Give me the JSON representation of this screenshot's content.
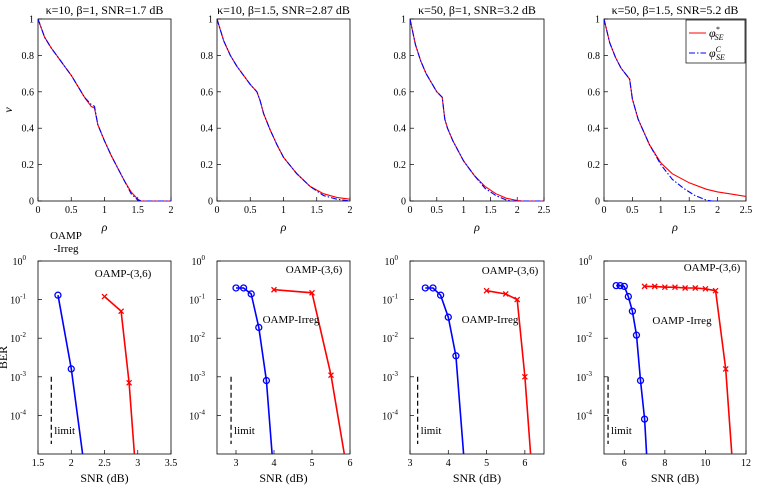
{
  "chart_data": [
    {
      "type": "line",
      "title": "κ=10, β=1, SNR=1.7 dB",
      "xlabel": "ρ",
      "ylabel": "v",
      "xlim": [
        0,
        2
      ],
      "ylim": [
        0,
        1
      ],
      "xticks": [
        "0",
        "0.5",
        "1",
        "1.5",
        "2"
      ],
      "yticks": [
        "0",
        "0.2",
        "0.4",
        "0.6",
        "0.8",
        "1"
      ],
      "series": [
        {
          "name": "φ*SE",
          "color": "#ff0000",
          "style": "solid",
          "x": [
            0,
            0.1,
            0.2,
            0.3,
            0.4,
            0.5,
            0.6,
            0.7,
            0.8,
            0.85,
            0.9,
            1.0,
            1.1,
            1.2,
            1.3,
            1.4,
            1.5,
            1.55,
            1.6,
            2.0
          ],
          "y": [
            1,
            0.9,
            0.84,
            0.79,
            0.74,
            0.69,
            0.63,
            0.57,
            0.52,
            0.51,
            0.42,
            0.33,
            0.25,
            0.18,
            0.11,
            0.05,
            0.01,
            0,
            0,
            0
          ]
        },
        {
          "name": "φCSE",
          "color": "#0000ff",
          "style": "dashdot",
          "x": [
            0,
            0.1,
            0.2,
            0.3,
            0.4,
            0.5,
            0.6,
            0.7,
            0.8,
            0.85,
            0.9,
            1.0,
            1.1,
            1.2,
            1.3,
            1.4,
            1.5,
            1.55,
            1.6,
            2.0
          ],
          "y": [
            1,
            0.9,
            0.84,
            0.79,
            0.74,
            0.69,
            0.63,
            0.57,
            0.53,
            0.52,
            0.42,
            0.33,
            0.25,
            0.18,
            0.11,
            0.04,
            0.005,
            0,
            0,
            0
          ]
        }
      ]
    },
    {
      "type": "line",
      "title": "κ=10, β=1.5, SNR=2.87 dB",
      "xlabel": "ρ",
      "ylabel": "",
      "xlim": [
        0,
        2
      ],
      "ylim": [
        0,
        1
      ],
      "xticks": [
        "0",
        "0.5",
        "1",
        "1.5",
        "2"
      ],
      "yticks": [
        "0",
        "0.2",
        "0.4",
        "0.6",
        "0.8",
        "1"
      ],
      "series": [
        {
          "name": "φ*SE",
          "color": "#ff0000",
          "style": "solid",
          "x": [
            0,
            0.1,
            0.2,
            0.3,
            0.4,
            0.5,
            0.6,
            0.65,
            0.7,
            0.8,
            0.9,
            1.0,
            1.2,
            1.4,
            1.6,
            1.8,
            2.0
          ],
          "y": [
            1,
            0.88,
            0.8,
            0.74,
            0.69,
            0.64,
            0.6,
            0.55,
            0.48,
            0.39,
            0.31,
            0.24,
            0.15,
            0.08,
            0.04,
            0.02,
            0.01
          ]
        },
        {
          "name": "φCSE",
          "color": "#0000ff",
          "style": "dashdot",
          "x": [
            0,
            0.1,
            0.2,
            0.3,
            0.4,
            0.5,
            0.6,
            0.65,
            0.7,
            0.8,
            0.9,
            1.0,
            1.2,
            1.4,
            1.6,
            1.8,
            2.0
          ],
          "y": [
            1,
            0.88,
            0.8,
            0.74,
            0.69,
            0.64,
            0.6,
            0.55,
            0.48,
            0.39,
            0.31,
            0.24,
            0.15,
            0.08,
            0.03,
            0.01,
            0
          ]
        }
      ]
    },
    {
      "type": "line",
      "title": "κ=50, β=1, SNR=3.2 dB",
      "xlabel": "ρ",
      "ylabel": "",
      "xlim": [
        0,
        2.5
      ],
      "ylim": [
        0,
        1
      ],
      "xticks": [
        "0",
        "0.5",
        "1",
        "1.5",
        "2",
        "2.5"
      ],
      "yticks": [
        "0",
        "0.2",
        "0.4",
        "0.6",
        "0.8",
        "1"
      ],
      "series": [
        {
          "name": "φ*SE",
          "color": "#ff0000",
          "style": "solid",
          "x": [
            0,
            0.1,
            0.2,
            0.3,
            0.4,
            0.5,
            0.6,
            0.65,
            0.7,
            0.8,
            1.0,
            1.2,
            1.4,
            1.6,
            1.8,
            2.0,
            2.1,
            2.5
          ],
          "y": [
            1,
            0.86,
            0.77,
            0.7,
            0.65,
            0.6,
            0.57,
            0.45,
            0.4,
            0.33,
            0.22,
            0.14,
            0.08,
            0.04,
            0.015,
            0.003,
            0,
            0
          ]
        },
        {
          "name": "φCSE",
          "color": "#0000ff",
          "style": "dashdot",
          "x": [
            0,
            0.1,
            0.2,
            0.3,
            0.4,
            0.5,
            0.6,
            0.65,
            0.7,
            0.8,
            1.0,
            1.2,
            1.4,
            1.6,
            1.8,
            1.9,
            2.0,
            2.5
          ],
          "y": [
            1,
            0.86,
            0.77,
            0.7,
            0.65,
            0.6,
            0.57,
            0.45,
            0.4,
            0.33,
            0.22,
            0.14,
            0.07,
            0.03,
            0.005,
            0,
            0,
            0
          ]
        }
      ]
    },
    {
      "type": "line",
      "title": "κ=50, β=1.5, SNR=5.2 dB",
      "xlabel": "ρ",
      "ylabel": "",
      "xlim": [
        0,
        2.5
      ],
      "ylim": [
        0,
        1
      ],
      "xticks": [
        "0",
        "0.5",
        "1",
        "1.5",
        "2",
        "2.5"
      ],
      "yticks": [
        "0",
        "0.2",
        "0.4",
        "0.6",
        "0.8",
        "1"
      ],
      "legend": {
        "position": "top-right",
        "entries": [
          "φ*SE",
          "φCSE"
        ]
      },
      "series": [
        {
          "name": "φ*SE",
          "color": "#ff0000",
          "style": "solid",
          "x": [
            0,
            0.1,
            0.2,
            0.3,
            0.4,
            0.45,
            0.5,
            0.6,
            0.8,
            1.0,
            1.2,
            1.5,
            1.8,
            2.0,
            2.2,
            2.5
          ],
          "y": [
            1,
            0.87,
            0.79,
            0.73,
            0.69,
            0.67,
            0.56,
            0.45,
            0.31,
            0.21,
            0.15,
            0.1,
            0.065,
            0.05,
            0.04,
            0.025
          ]
        },
        {
          "name": "φCSE",
          "color": "#0000ff",
          "style": "dashdot",
          "x": [
            0,
            0.1,
            0.2,
            0.3,
            0.4,
            0.45,
            0.5,
            0.6,
            0.8,
            1.0,
            1.2,
            1.4,
            1.6,
            1.8,
            1.9,
            2.0
          ],
          "y": [
            1,
            0.87,
            0.79,
            0.73,
            0.69,
            0.67,
            0.56,
            0.45,
            0.31,
            0.2,
            0.12,
            0.07,
            0.03,
            0.005,
            0,
            0
          ]
        }
      ]
    },
    {
      "type": "line",
      "yscale": "log",
      "xlabel": "SNR (dB)",
      "ylabel": "BER",
      "xlim": [
        1.5,
        3.5
      ],
      "ylim": [
        1e-05,
        1
      ],
      "xticks": [
        "1.5",
        "2",
        "2.5",
        "3",
        "3.5"
      ],
      "limit_snr": 1.7,
      "limit_label": "limit",
      "series": [
        {
          "name": "OAMP-Irreg",
          "label": "OAMP\n-Irreg",
          "color": "#0000ff",
          "marker": "circle",
          "x": [
            1.8,
            2.0,
            2.17
          ],
          "y": [
            0.13,
            0.0016,
            1e-05
          ],
          "markers": 2
        },
        {
          "name": "OAMP-(3,6)",
          "label": "OAMP-(3,6)",
          "color": "#ff0000",
          "marker": "x",
          "x": [
            2.5,
            2.75,
            2.87,
            2.95
          ],
          "y": [
            0.12,
            0.05,
            0.0007,
            1e-05
          ],
          "markers": 3
        }
      ]
    },
    {
      "type": "line",
      "yscale": "log",
      "xlabel": "SNR (dB)",
      "ylabel": "",
      "xlim": [
        2.5,
        6
      ],
      "ylim": [
        1e-05,
        1
      ],
      "xticks": [
        "3",
        "4",
        "5",
        "6"
      ],
      "limit_snr": 2.87,
      "limit_label": "limit",
      "series": [
        {
          "name": "OAMP-Irreg",
          "label": "OAMP-Irreg",
          "color": "#0000ff",
          "marker": "circle",
          "x": [
            3.0,
            3.2,
            3.4,
            3.6,
            3.8,
            3.95
          ],
          "y": [
            0.2,
            0.2,
            0.14,
            0.019,
            0.0008,
            1e-05
          ],
          "markers": 5
        },
        {
          "name": "OAMP-(3,6)",
          "label": "OAMP-(3,6)",
          "color": "#ff0000",
          "marker": "x",
          "x": [
            4.0,
            5.0,
            5.5,
            5.85
          ],
          "y": [
            0.18,
            0.15,
            0.0011,
            1e-05
          ],
          "markers": 3
        }
      ]
    },
    {
      "type": "line",
      "yscale": "log",
      "xlabel": "SNR (dB)",
      "ylabel": "",
      "xlim": [
        3,
        6.5
      ],
      "ylim": [
        1e-05,
        1
      ],
      "xticks": [
        "3",
        "4",
        "5",
        "6"
      ],
      "limit_snr": 3.2,
      "limit_label": "limit",
      "series": [
        {
          "name": "OAMP-Irreg",
          "label": "OAMP-Irreg",
          "color": "#0000ff",
          "marker": "circle",
          "x": [
            3.4,
            3.6,
            3.8,
            4.0,
            4.2,
            4.4
          ],
          "y": [
            0.2,
            0.2,
            0.13,
            0.035,
            0.0035,
            1e-05
          ],
          "markers": 5
        },
        {
          "name": "OAMP-(3,6)",
          "label": "OAMP-(3,6)",
          "color": "#ff0000",
          "marker": "x",
          "x": [
            5.0,
            5.5,
            5.8,
            6.0,
            6.15
          ],
          "y": [
            0.17,
            0.14,
            0.1,
            0.001,
            1e-05
          ],
          "markers": 4
        }
      ]
    },
    {
      "type": "line",
      "yscale": "log",
      "xlabel": "SNR (dB)",
      "ylabel": "",
      "xlim": [
        5,
        12
      ],
      "ylim": [
        1e-05,
        1
      ],
      "xticks": [
        "6",
        "8",
        "10",
        "12"
      ],
      "limit_snr": 5.2,
      "limit_label": "limit",
      "series": [
        {
          "name": "OAMP-Irreg",
          "label": "OAMP -Irreg",
          "color": "#0000ff",
          "marker": "circle",
          "x": [
            5.6,
            5.8,
            6.0,
            6.2,
            6.4,
            6.6,
            6.8,
            7.0,
            7.1
          ],
          "y": [
            0.23,
            0.23,
            0.22,
            0.12,
            0.05,
            0.012,
            0.0008,
            8e-05,
            1e-05
          ],
          "markers": 8
        },
        {
          "name": "OAMP-(3,6)",
          "label": "OAMP-(3,6)",
          "color": "#ff0000",
          "marker": "x",
          "x": [
            7.0,
            7.5,
            8.0,
            8.5,
            9.0,
            9.5,
            10.0,
            10.5,
            11.0,
            11.3
          ],
          "y": [
            0.22,
            0.22,
            0.21,
            0.21,
            0.2,
            0.2,
            0.19,
            0.17,
            0.0016,
            1e-05
          ],
          "markers": 9
        }
      ]
    }
  ]
}
